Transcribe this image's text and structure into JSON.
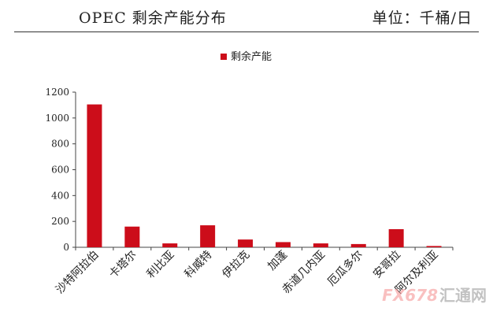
{
  "header": {
    "title": "OPEC 剩余产能分布",
    "unit": "单位：千桶/日"
  },
  "watermark": {
    "logo_text": "FX678",
    "brand_text": "汇通网"
  },
  "chart_data": {
    "type": "bar",
    "title": "",
    "xlabel": "",
    "ylabel": "",
    "categories": [
      "沙特阿拉伯",
      "卡塔尔",
      "利比亚",
      "科威特",
      "伊拉克",
      "加蓬",
      "赤道几内亚",
      "厄瓜多尔",
      "安哥拉",
      "阿尔及利亚"
    ],
    "series": [
      {
        "name": "剩余产能",
        "values": [
          1105,
          160,
          30,
          170,
          60,
          40,
          30,
          25,
          140,
          10
        ]
      }
    ],
    "ylim": [
      0,
      1200
    ],
    "yticks": [
      0,
      200,
      400,
      600,
      800,
      1000,
      1200
    ],
    "color": "#cc0d1a",
    "legend": "top-center",
    "grid": false
  }
}
